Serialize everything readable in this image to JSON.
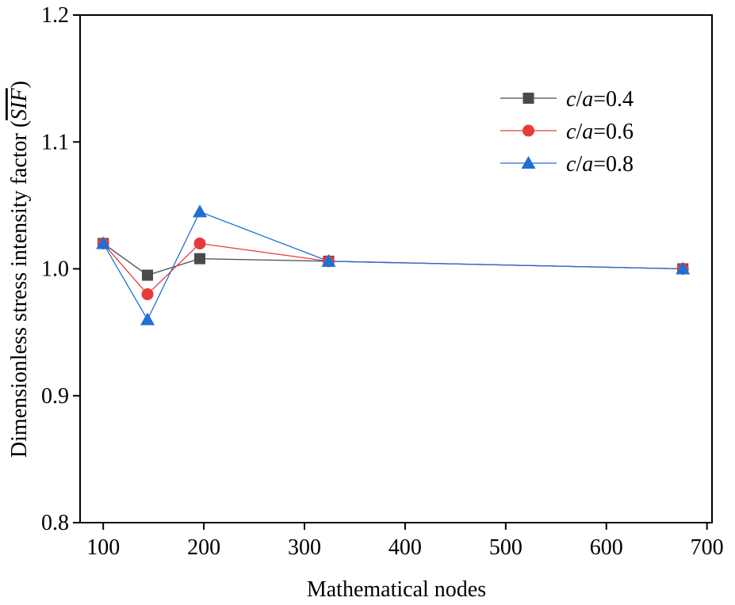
{
  "chart_data": {
    "type": "line",
    "title": "",
    "xlabel": "Mathematical nodes",
    "ylabel_prefix": "Dimensionless stress intensity factor (",
    "ylabel_symbol": "SIF",
    "ylabel_suffix": ")",
    "xlim": [
      77,
      705
    ],
    "ylim": [
      0.8,
      1.2
    ],
    "x_ticks": [
      100,
      200,
      300,
      400,
      500,
      600,
      700
    ],
    "y_ticks": [
      0.8,
      0.9,
      1.0,
      1.1,
      1.2
    ],
    "x_tick_labels": [
      "100",
      "200",
      "300",
      "400",
      "500",
      "600",
      "700"
    ],
    "y_tick_labels": [
      "0.8",
      "0.9",
      "1.0",
      "1.1",
      "1.2"
    ],
    "x": [
      100,
      144,
      196,
      324,
      676
    ],
    "series": [
      {
        "name": "c/a=0.4",
        "label_var1": "c",
        "label_var2": "a",
        "label_value": "=0.4",
        "marker": "square",
        "color": "#4a4a4a",
        "values": [
          1.02,
          0.995,
          1.008,
          1.006,
          1.0
        ]
      },
      {
        "name": "c/a=0.6",
        "label_var1": "c",
        "label_var2": "a",
        "label_value": "=0.6",
        "marker": "circle",
        "color": "#e83a3a",
        "values": [
          1.02,
          0.98,
          1.02,
          1.006,
          1.0
        ]
      },
      {
        "name": "c/a=0.8",
        "label_var1": "c",
        "label_var2": "a",
        "label_value": "=0.8",
        "marker": "triangle",
        "color": "#1f6fd6",
        "values": [
          1.02,
          0.96,
          1.045,
          1.006,
          1.0
        ]
      }
    ],
    "legend_position": "top-right",
    "grid": false
  }
}
